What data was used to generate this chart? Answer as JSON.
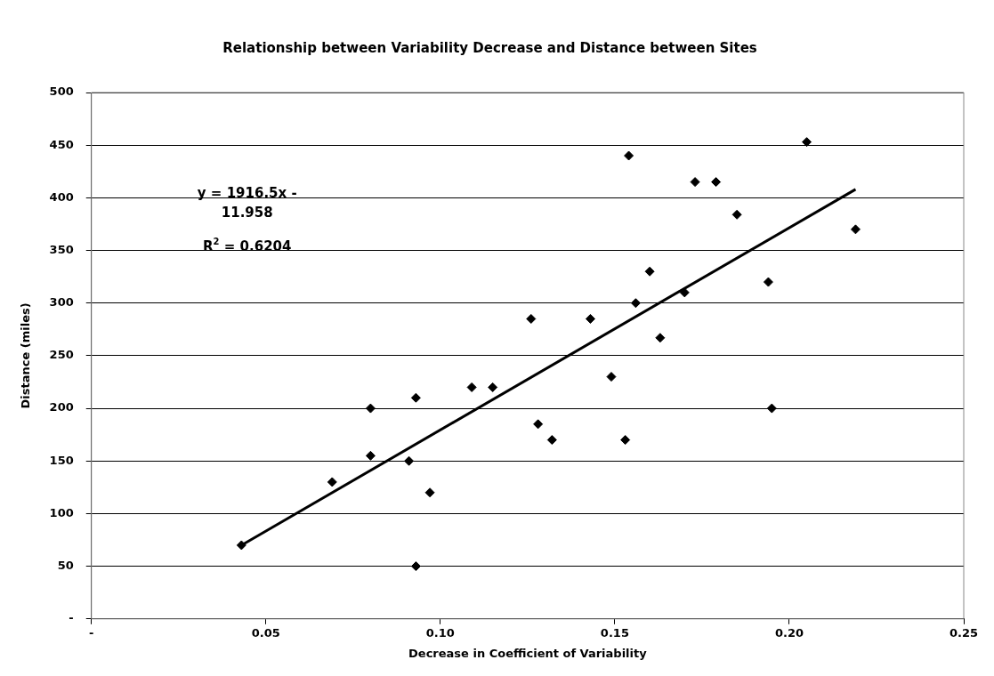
{
  "chart_data": {
    "type": "scatter",
    "title": "Relationship between Variability Decrease and Distance between Sites",
    "xlabel": "Decrease in Coefficient of Variability",
    "ylabel": "Distance (miles)",
    "xlim": [
      0,
      0.25
    ],
    "xticks": [
      {
        "value": 0,
        "label": "-"
      },
      0.05,
      {
        "value": 0.1,
        "label": "0.10"
      },
      0.15,
      {
        "value": 0.2,
        "label": "0.20"
      },
      0.25
    ],
    "ylim": [
      0,
      500
    ],
    "yticks": [
      {
        "value": 0,
        "label": "-"
      },
      50,
      100,
      150,
      200,
      250,
      300,
      350,
      400,
      450,
      500
    ],
    "grid": "y",
    "legend": false,
    "annotations": [
      "y = 1916.5x - 11.958",
      "R$^{2}$ = 0.6204"
    ],
    "series": [
      {
        "type": "scatter",
        "marker": "diamond",
        "color": "#000000",
        "x": [
          0.043,
          0.069,
          0.08,
          0.08,
          0.091,
          0.093,
          0.093,
          0.097,
          0.109,
          0.115,
          0.126,
          0.128,
          0.132,
          0.143,
          0.149,
          0.153,
          0.154,
          0.156,
          0.16,
          0.163,
          0.17,
          0.173,
          0.179,
          0.185,
          0.194,
          0.195,
          0.205,
          0.219
        ],
        "values": [
          70,
          130,
          155,
          200,
          150,
          210,
          50,
          120,
          220,
          220,
          285,
          185,
          170,
          285,
          230,
          170,
          440,
          300,
          330,
          267,
          310,
          415,
          415,
          384,
          320,
          200,
          453,
          370
        ]
      },
      {
        "type": "line",
        "marker": "none",
        "color": "#000000",
        "x": [
          0.043,
          0.219
        ],
        "values": [
          70,
          408
        ]
      }
    ]
  }
}
